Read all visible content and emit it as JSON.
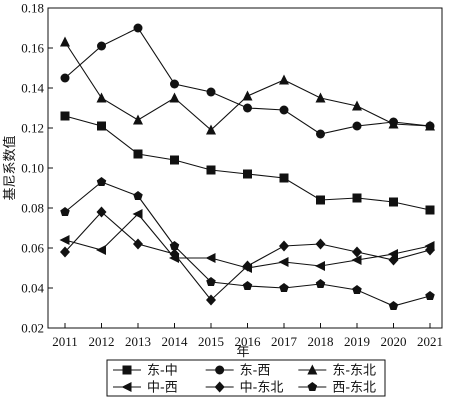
{
  "chart_data": {
    "type": "line",
    "title": "",
    "xlabel": "年",
    "ylabel": "基尼系数值",
    "x": [
      "2011",
      "2012",
      "2013",
      "2014",
      "2015",
      "2016",
      "2017",
      "2018",
      "2019",
      "2020",
      "2021"
    ],
    "ylim": [
      0.02,
      0.18
    ],
    "yticks": [
      "0.02",
      "0.04",
      "0.06",
      "0.08",
      "0.10",
      "0.12",
      "0.14",
      "0.16",
      "0.18"
    ],
    "grid": false,
    "legend_position": "bottom",
    "series": [
      {
        "name": "东-中",
        "marker": "square",
        "values": [
          0.126,
          0.121,
          0.107,
          0.104,
          0.099,
          0.097,
          0.095,
          0.084,
          0.085,
          0.083,
          0.079
        ]
      },
      {
        "name": "东-西",
        "marker": "circle",
        "values": [
          0.145,
          0.161,
          0.17,
          0.142,
          0.138,
          0.13,
          0.129,
          0.117,
          0.121,
          0.123,
          0.121
        ]
      },
      {
        "name": "东-东北",
        "marker": "triangle-up",
        "values": [
          0.163,
          0.135,
          0.124,
          0.135,
          0.119,
          0.136,
          0.144,
          0.135,
          0.131,
          0.122,
          0.121
        ]
      },
      {
        "name": "中-西",
        "marker": "triangle-left",
        "values": [
          0.064,
          0.059,
          0.077,
          0.055,
          0.055,
          0.05,
          0.053,
          0.051,
          0.054,
          0.057,
          0.061
        ]
      },
      {
        "name": "中-东北",
        "marker": "diamond",
        "values": [
          0.058,
          0.078,
          0.062,
          0.057,
          0.034,
          0.051,
          0.061,
          0.062,
          0.058,
          0.054,
          0.059
        ]
      },
      {
        "name": "西-东北",
        "marker": "pentagon",
        "values": [
          0.078,
          0.093,
          0.086,
          0.061,
          0.043,
          0.041,
          0.04,
          0.042,
          0.039,
          0.031,
          0.036
        ]
      }
    ]
  }
}
